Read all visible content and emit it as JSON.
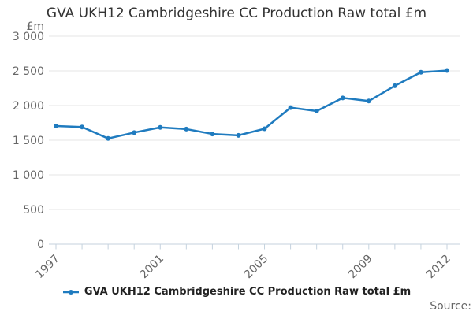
{
  "header": {
    "title": "GVA UKH12 Cambridgeshire CC Production Raw total £m"
  },
  "legend": {
    "label": "GVA UKH12 Cambridgeshire CC Production Raw total £m",
    "marker_icon": "line-with-dot-marker"
  },
  "footer": {
    "source_label": "Source:"
  },
  "colors": {
    "series": "#1f7bbf",
    "grid": "#e6e6e6",
    "axis": "#c5d2de",
    "axis_text": "#666666",
    "title_text": "#333333",
    "legend_text": "#222222"
  },
  "chart_data": {
    "type": "line",
    "title": "GVA UKH12 Cambridgeshire CC Production Raw total £m",
    "xlabel": "",
    "ylabel": "£m",
    "ylim": [
      0,
      3000
    ],
    "grid": "horizontal",
    "legend_position": "bottom",
    "x": [
      1997,
      1998,
      1999,
      2000,
      2001,
      2002,
      2003,
      2004,
      2005,
      2006,
      2007,
      2008,
      2009,
      2010,
      2011,
      2012
    ],
    "x_labeled_ticks": [
      1997,
      2001,
      2005,
      2009,
      2012
    ],
    "y_ticks": [
      {
        "value": 0,
        "label": "0"
      },
      {
        "value": 500,
        "label": "500"
      },
      {
        "value": 1000,
        "label": "1 000"
      },
      {
        "value": 1500,
        "label": "1 500"
      },
      {
        "value": 2000,
        "label": "2 000"
      },
      {
        "value": 2500,
        "label": "2 500"
      },
      {
        "value": 3000,
        "label": "3 000"
      }
    ],
    "series": [
      {
        "name": "GVA UKH12 Cambridgeshire CC Production Raw total £m",
        "values": [
          1705,
          1690,
          1525,
          1610,
          1685,
          1660,
          1590,
          1570,
          1665,
          1970,
          1920,
          2110,
          2065,
          2285,
          2480,
          2505
        ]
      }
    ]
  }
}
